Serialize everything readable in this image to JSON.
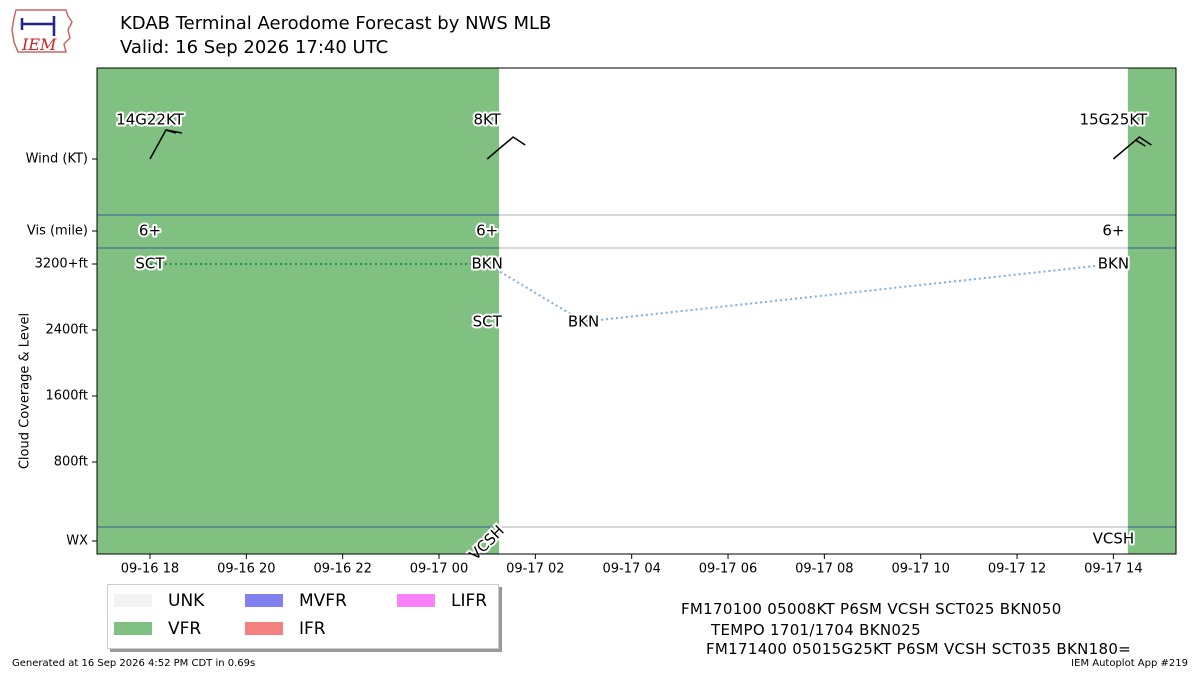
{
  "header": {
    "title": "KDAB Terminal Aerodome Forecast by NWS MLB",
    "subtitle": "Valid: 16 Sep 2026 17:40 UTC"
  },
  "logo": {
    "text": "IEM",
    "icon": "iowa-state-outline-logo"
  },
  "colors": {
    "VFR": "#80c080",
    "UNK": "#f2f2f2",
    "MVFR": "#8080f0",
    "IFR": "#f48080",
    "LIFR": "#f880f8",
    "cloud_line_vfr": "#2e8b57",
    "cloud_line_mvfr": "#7aaee0"
  },
  "chart_data": {
    "type": "timeline",
    "x_ticks": [
      "09-16 18",
      "09-16 20",
      "09-16 22",
      "09-17 00",
      "09-17 02",
      "09-17 04",
      "09-17 06",
      "09-17 08",
      "09-17 10",
      "09-17 12",
      "09-17 14"
    ],
    "x_range_hours": [
      -1.1,
      21.3
    ],
    "y_rows": [
      "Wind (KT)",
      "Vis (mile)",
      "WX"
    ],
    "y_cloud_ticks": [
      "3200+ft",
      "2400ft",
      "1600ft",
      "800ft"
    ],
    "y_cloud_label": "Cloud Coverage & Level",
    "category_periods": [
      {
        "start_hour": -1.1,
        "end_hour": 7.25,
        "category": "VFR"
      },
      {
        "start_hour": 7.25,
        "end_hour": 20.3,
        "category": "UNK"
      },
      {
        "start_hour": 20.3,
        "end_hour": 21.3,
        "category": "VFR"
      }
    ],
    "forecasts": [
      {
        "hour": 0,
        "wind": "14G22KT",
        "wind_dir": 140,
        "vis": "6+",
        "clouds": [
          {
            "cov": "SCT",
            "ft": 3200
          }
        ],
        "wx": ""
      },
      {
        "hour": 7.0,
        "wind": "8KT",
        "wind_dir": 50,
        "vis": "6+",
        "clouds": [
          {
            "cov": "SCT",
            "ft": 2500
          },
          {
            "cov": "BKN",
            "ft": 3200
          }
        ],
        "wx": "VCSH"
      },
      {
        "hour": 9.0,
        "tempo": true,
        "clouds": [
          {
            "cov": "BKN",
            "ft": 2500
          }
        ]
      },
      {
        "hour": 20.0,
        "wind": "15G25KT",
        "wind_dir": 50,
        "vis": "6+",
        "clouds": [
          {
            "cov": "BKN",
            "ft": 3200
          }
        ],
        "wx": "VCSH"
      }
    ],
    "cloud_lines": [
      {
        "pts": [
          [
            0,
            3200
          ],
          [
            7.0,
            3200
          ]
        ],
        "category": "VFR"
      },
      {
        "pts": [
          [
            7.0,
            3200
          ],
          [
            9.0,
            2500
          ],
          [
            20.0,
            3200
          ]
        ],
        "category": "MVFR"
      }
    ]
  },
  "legend": [
    {
      "label": "UNK",
      "color_key": "UNK"
    },
    {
      "label": "MVFR",
      "color_key": "MVFR"
    },
    {
      "label": "LIFR",
      "color_key": "LIFR"
    },
    {
      "label": "VFR",
      "color_key": "VFR"
    },
    {
      "label": "IFR",
      "color_key": "IFR"
    }
  ],
  "taf_text": [
    "FM170100 05008KT P6SM VCSH SCT025 BKN050",
    "TEMPO 1701/1704 BKN025",
    "FM171400 05015G25KT P6SM VCSH SCT035 BKN180="
  ],
  "footer": {
    "generated": "Generated at 16 Sep 2026 4:52 PM CDT in 0.69s",
    "app": "IEM Autoplot App #219"
  }
}
